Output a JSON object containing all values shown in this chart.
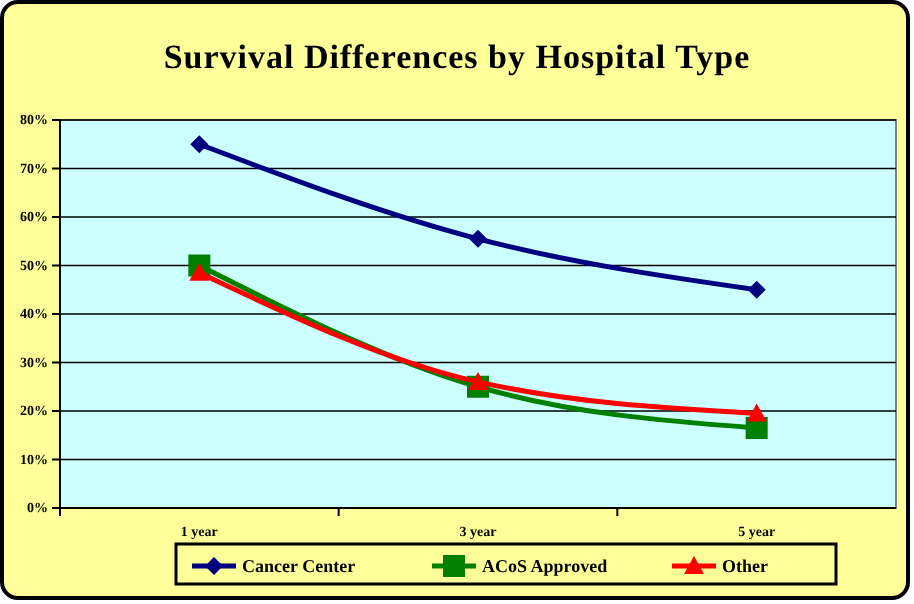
{
  "chart_data": {
    "type": "line",
    "title": "Survival Differences by Hospital Type",
    "categories": [
      "1 year",
      "3 year",
      "5 year"
    ],
    "series": [
      {
        "name": "Cancer Center",
        "color": "#000080",
        "marker": "diamond",
        "values": [
          75,
          55.5,
          45
        ]
      },
      {
        "name": "ACoS Approved",
        "color": "#008000",
        "marker": "square",
        "values": [
          50,
          25,
          16.5
        ]
      },
      {
        "name": "Other",
        "color": "#ff0000",
        "marker": "triangle",
        "values": [
          48.5,
          26,
          19.5
        ]
      }
    ],
    "ylim": [
      0,
      80
    ],
    "yticks": [
      {
        "value": 0,
        "label": "0%"
      },
      {
        "value": 10,
        "label": "10%"
      },
      {
        "value": 20,
        "label": "20%"
      },
      {
        "value": 30,
        "label": "30%"
      },
      {
        "value": 40,
        "label": "40%"
      },
      {
        "value": 50,
        "label": "50%"
      },
      {
        "value": 60,
        "label": "60%"
      },
      {
        "value": 70,
        "label": "70%"
      },
      {
        "value": 80,
        "label": "80%"
      }
    ],
    "grid": "y",
    "legend": "bottom"
  }
}
